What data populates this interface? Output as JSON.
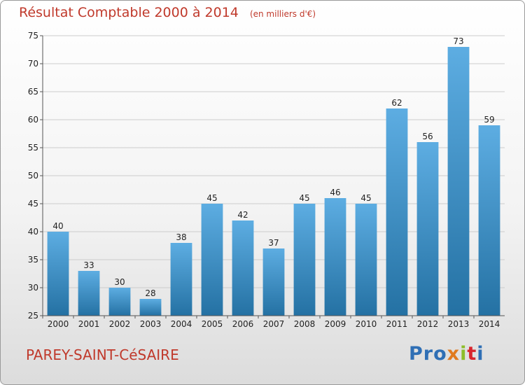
{
  "header": {
    "title": "Résultat Comptable 2000 à 2014",
    "subtitle": "(en milliers d'€)"
  },
  "footer": {
    "town": "PAREY-SAINT-CéSAIRE",
    "logo": [
      "Pro",
      "x",
      "i",
      "t",
      "i"
    ]
  },
  "colors": {
    "title": "#c0392b",
    "bar_top": "#5dade2",
    "bar_bottom": "#2471a3",
    "grid": "#cccccc"
  },
  "chart_data": {
    "type": "bar",
    "title": "Résultat Comptable 2000 à 2014",
    "subtitle": "(en milliers d'€)",
    "categories": [
      "2000",
      "2001",
      "2002",
      "2003",
      "2004",
      "2005",
      "2006",
      "2007",
      "2008",
      "2009",
      "2010",
      "2011",
      "2012",
      "2013",
      "2014"
    ],
    "values": [
      40,
      33,
      30,
      28,
      38,
      45,
      42,
      37,
      45,
      46,
      45,
      62,
      56,
      73,
      59
    ],
    "ylim": [
      25,
      75
    ],
    "yticks": [
      25,
      30,
      35,
      40,
      45,
      50,
      55,
      60,
      65,
      70,
      75
    ],
    "grid": true,
    "xlabel": "",
    "ylabel": ""
  }
}
